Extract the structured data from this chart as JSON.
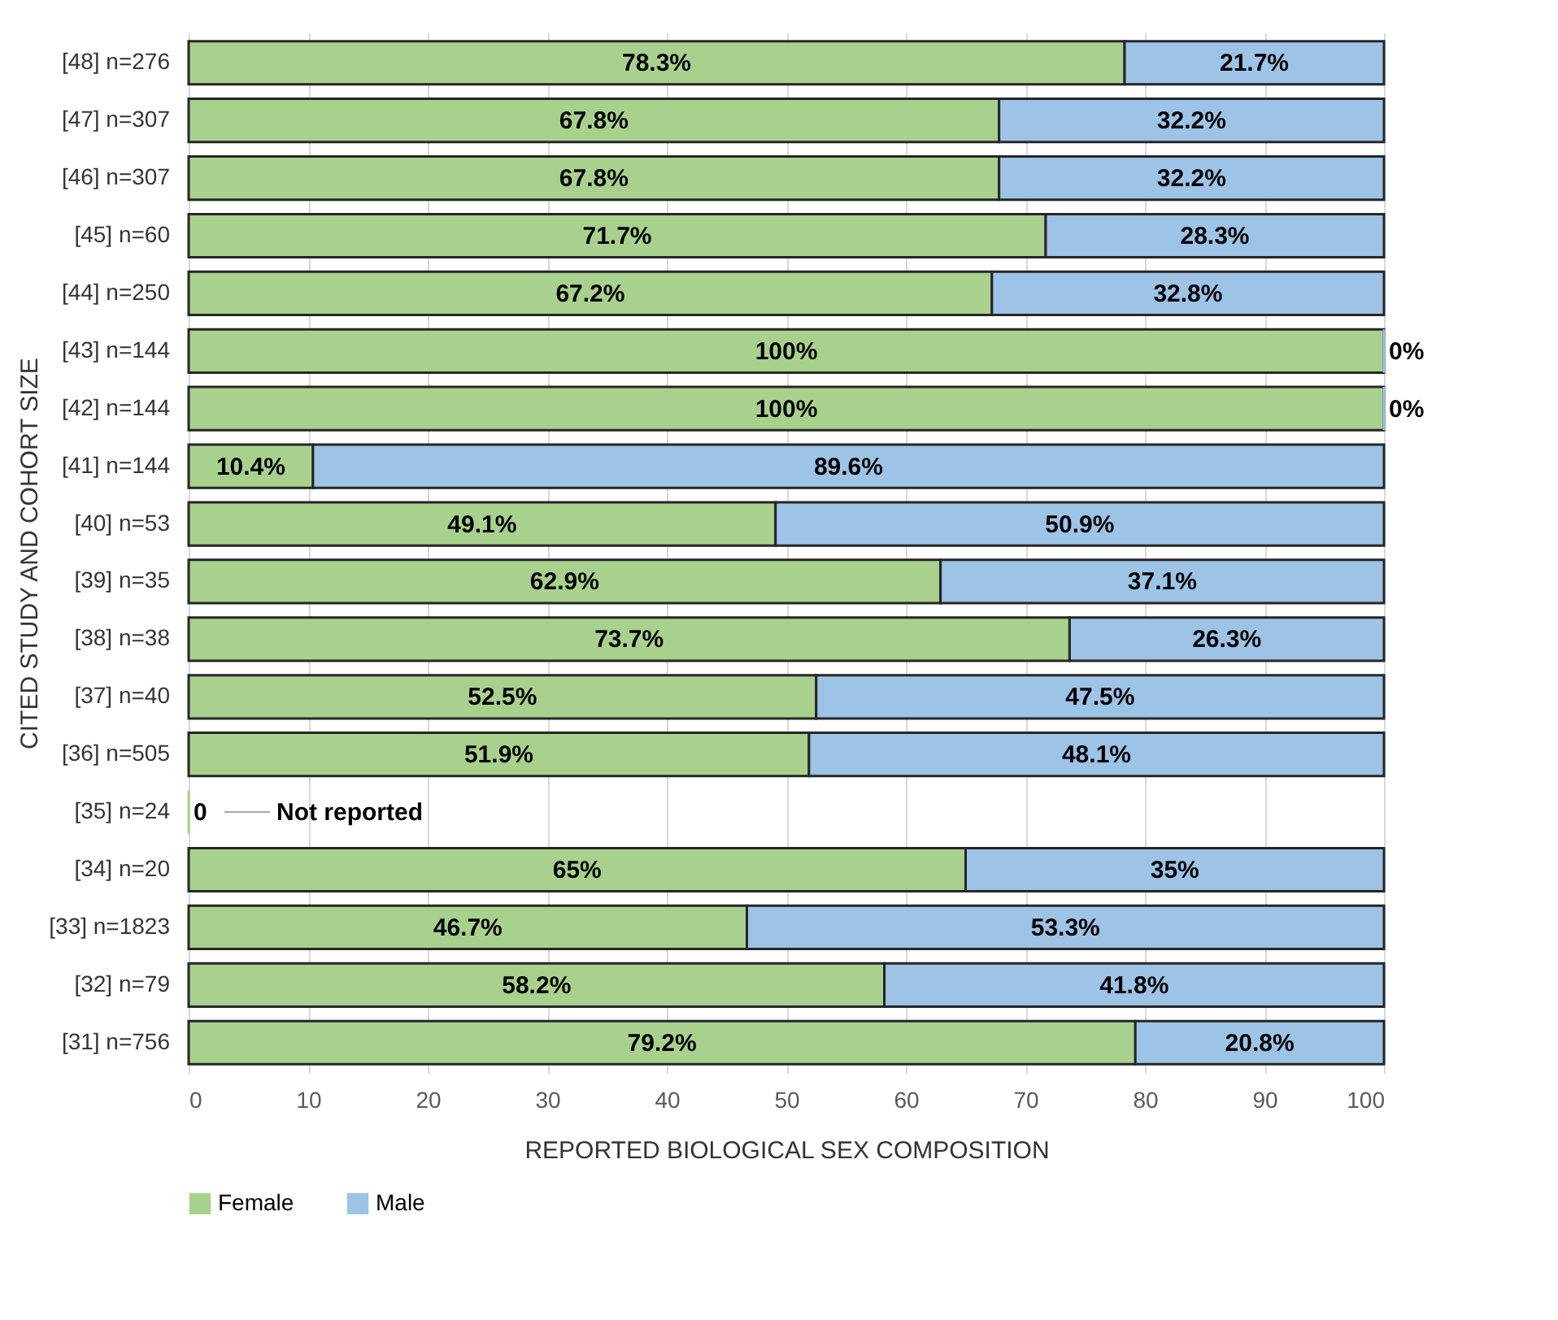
{
  "chart_data": {
    "type": "bar",
    "orientation": "horizontal",
    "stacked": true,
    "xlabel": "REPORTED BIOLOGICAL SEX COMPOSITION",
    "ylabel": "CITED STUDY AND COHORT SIZE",
    "categories": [
      "[48] n=276",
      "[47] n=307",
      "[46] n=307",
      "[45] n=60",
      "[44] n=250",
      "[43] n=144",
      "[42] n=144",
      "[41] n=144",
      "[40] n=53",
      "[39] n=35",
      "[38] n=38",
      "[37] n=40",
      "[36] n=505",
      "[35] n=24",
      "[34] n=20",
      "[33] n=1823",
      "[32] n=79",
      "[31] n=756"
    ],
    "series": [
      {
        "name": "Female",
        "color": "#a9d18e",
        "values": [
          78.3,
          67.8,
          67.8,
          71.7,
          67.2,
          100,
          100,
          10.4,
          49.1,
          62.9,
          73.7,
          52.5,
          51.9,
          0,
          65,
          46.7,
          58.2,
          79.2
        ],
        "value_labels": [
          "78.3%",
          "67.8%",
          "67.8%",
          "71.7%",
          "67.2%",
          "100%",
          "100%",
          "10.4%",
          "49.1%",
          "62.9%",
          "73.7%",
          "52.5%",
          "51.9%",
          "0",
          "65%",
          "46.7%",
          "58.2%",
          "79.2%"
        ]
      },
      {
        "name": "Male",
        "color": "#9dc3e6",
        "values": [
          21.7,
          32.2,
          32.2,
          28.3,
          32.8,
          0,
          0,
          89.6,
          50.9,
          37.1,
          26.3,
          47.5,
          48.1,
          null,
          35,
          53.3,
          41.8,
          20.8
        ],
        "value_labels": [
          "21.7%",
          "32.2%",
          "32.2%",
          "28.3%",
          "32.8%",
          "0%",
          "0%",
          "89.6%",
          "50.9%",
          "37.1%",
          "26.3%",
          "47.5%",
          "48.1%",
          null,
          "35%",
          "53.3%",
          "41.8%",
          "20.8%"
        ]
      }
    ],
    "annotations": [
      "Not reported"
    ],
    "xlim": [
      0,
      100
    ],
    "xticks": [
      0,
      10,
      20,
      30,
      40,
      50,
      60,
      70,
      80,
      90,
      100
    ],
    "grid": "x",
    "legend": "bottom"
  }
}
